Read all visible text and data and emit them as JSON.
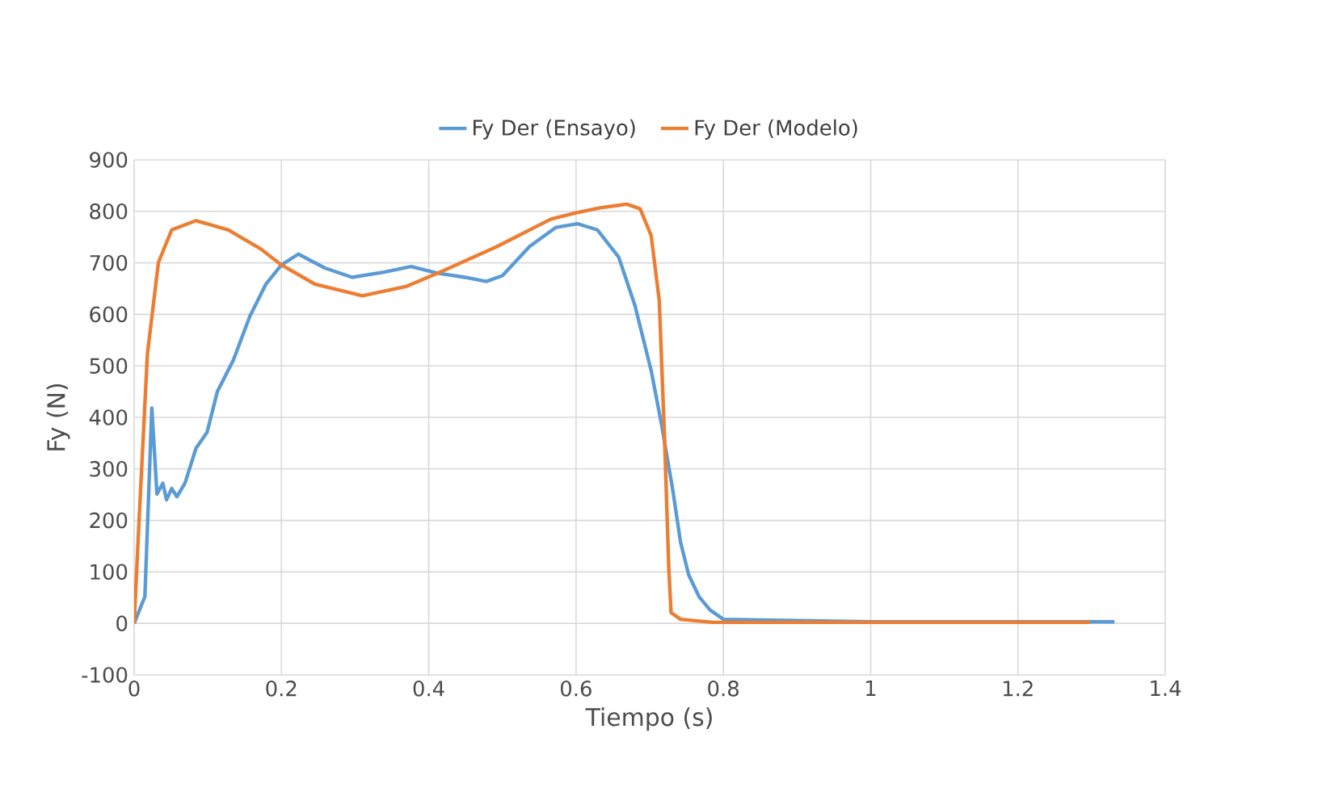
{
  "chart_data": {
    "type": "line",
    "xlabel": "Tiempo (s)",
    "ylabel": "Fy (N)",
    "xlim": [
      0,
      1.4
    ],
    "xticks": [
      0,
      0.2,
      0.4,
      0.6,
      0.8,
      1,
      1.2,
      1.4
    ],
    "ylim": [
      -100,
      900
    ],
    "yticks": [
      -100,
      0,
      100,
      200,
      300,
      400,
      500,
      600,
      700,
      800,
      900
    ],
    "grid": true,
    "legend": "top",
    "marker": "none",
    "line_style": "solid",
    "series": [
      {
        "name": "Fy Der (Ensayo)",
        "color": "#5b9bd5",
        "x": [
          0,
          0.0146,
          0.024,
          0.031,
          0.039,
          0.044,
          0.051,
          0.058,
          0.069,
          0.084,
          0.099,
          0.113,
          0.135,
          0.157,
          0.179,
          0.2,
          0.223,
          0.259,
          0.296,
          0.339,
          0.376,
          0.412,
          0.449,
          0.478,
          0.5,
          0.537,
          0.573,
          0.602,
          0.629,
          0.658,
          0.68,
          0.702,
          0.716,
          0.731,
          0.742,
          0.753,
          0.767,
          0.782,
          0.8,
          0.9,
          1.0,
          1.1,
          1.2,
          1.331
        ],
        "values": [
          0,
          52,
          418,
          251,
          272,
          240,
          262,
          246,
          272,
          340,
          371,
          450,
          512,
          596,
          659,
          696,
          717,
          690,
          672,
          682,
          693,
          680,
          672,
          664,
          675,
          732,
          769,
          776,
          764,
          711,
          617,
          491,
          387,
          262,
          157,
          94,
          52,
          26,
          8,
          null,
          3,
          null,
          3,
          3
        ]
      },
      {
        "name": "Fy Der (Modelo)",
        "color": "#ed7d31",
        "x": [
          0,
          0.007,
          0.018,
          0.033,
          0.051,
          0.084,
          0.128,
          0.172,
          0.2,
          0.245,
          0.31,
          0.369,
          0.42,
          0.493,
          0.566,
          0.6,
          0.633,
          0.669,
          0.687,
          0.702,
          0.713,
          0.72,
          0.726,
          0.729,
          0.742,
          0.785,
          1.298
        ],
        "values": [
          0,
          209,
          523,
          701,
          764,
          782,
          764,
          727,
          696,
          659,
          636,
          654,
          685,
          732,
          785,
          797,
          807,
          814,
          805,
          753,
          627,
          366,
          105,
          21,
          8,
          2,
          2
        ]
      }
    ]
  }
}
